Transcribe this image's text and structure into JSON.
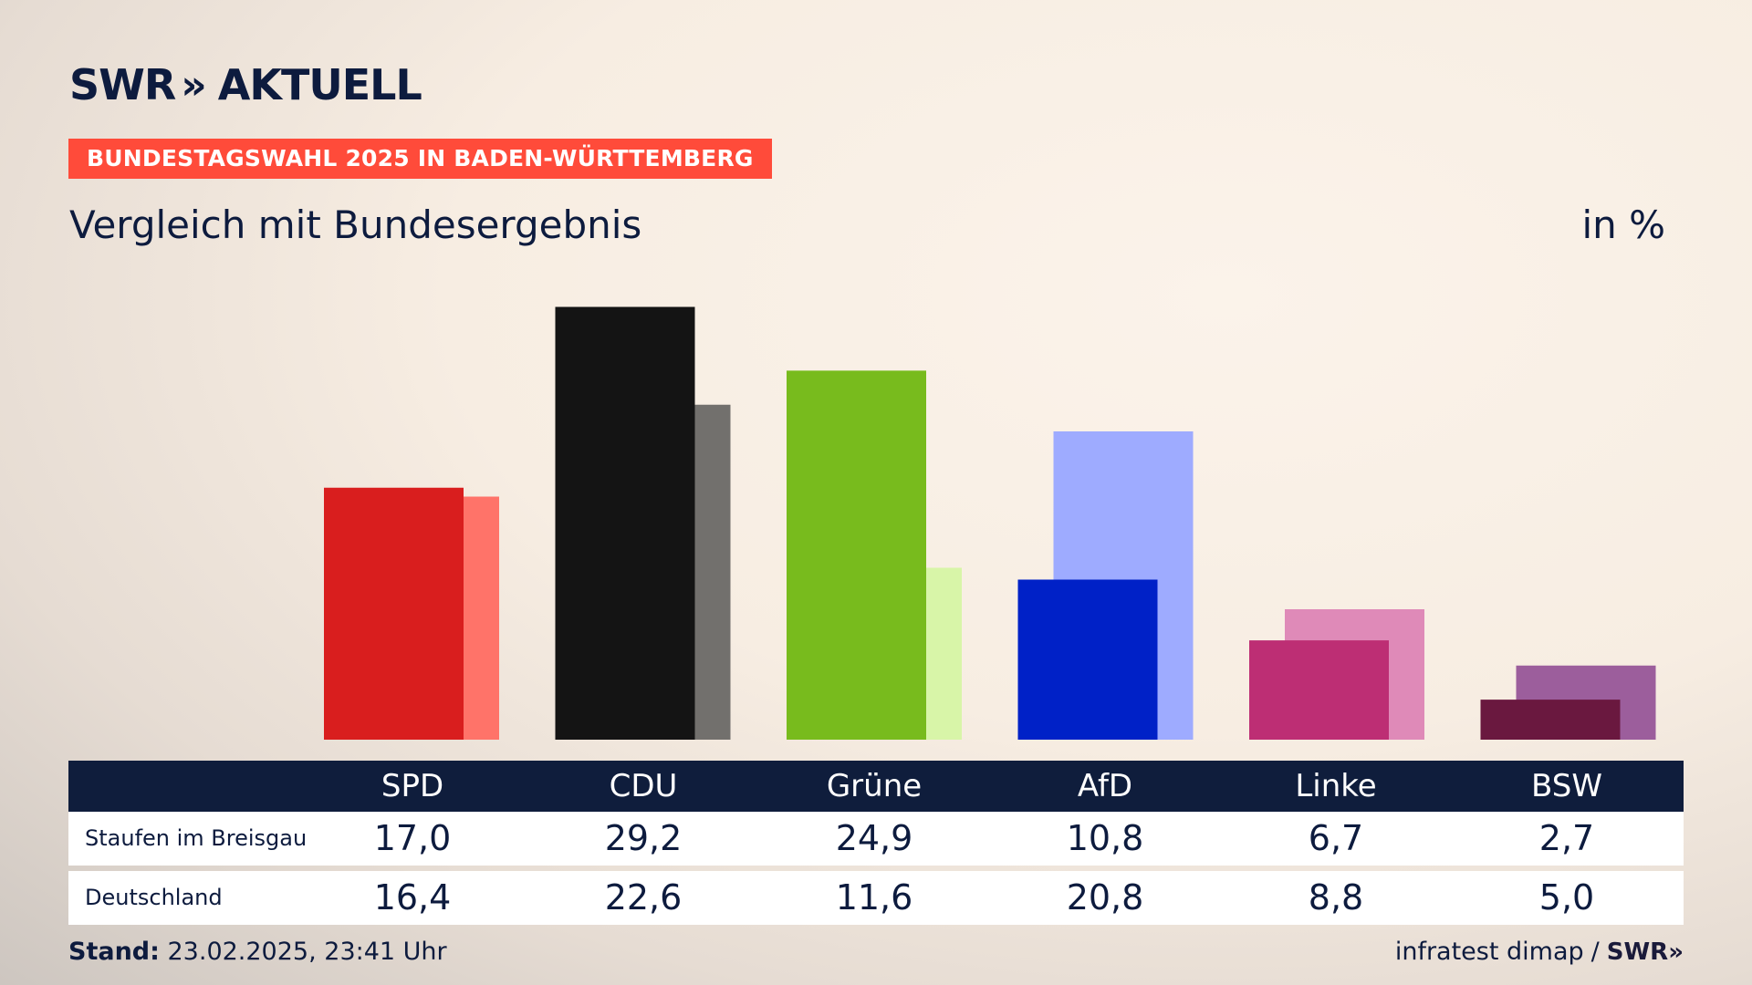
{
  "brand": {
    "name": "SWR",
    "chevrons": "»",
    "suffix": "AKTUELL"
  },
  "kicker": "BUNDESTAGSWAHL 2025 IN BADEN-WÜRTTEMBERG",
  "title": "Vergleich mit Bundesergebnis",
  "unit": "in %",
  "chart_data": {
    "type": "bar",
    "categories": [
      "SPD",
      "CDU",
      "Grüne",
      "AfD",
      "Linke",
      "BSW"
    ],
    "series": [
      {
        "name": "Staufen im Breisgau",
        "values": [
          17.0,
          29.2,
          24.9,
          10.8,
          6.7,
          2.7
        ],
        "colors": [
          "#d91e1e",
          "#141414",
          "#78bb1d",
          "#0021c7",
          "#bd2e74",
          "#6a183f"
        ]
      },
      {
        "name": "Deutschland",
        "values": [
          16.4,
          22.6,
          11.6,
          20.8,
          8.8,
          5.0
        ],
        "colors": [
          "#ff7369",
          "#72706d",
          "#d8f5a8",
          "#9eabff",
          "#df8ab8",
          "#9c5e9c"
        ]
      }
    ],
    "ylim": [
      0,
      30
    ],
    "xlabel": "",
    "ylabel": "",
    "legend": "none"
  },
  "table": {
    "header": [
      "SPD",
      "CDU",
      "Grüne",
      "AfD",
      "Linke",
      "BSW"
    ],
    "rows": [
      {
        "label": "Staufen im Breisgau",
        "values": [
          "17,0",
          "29,2",
          "24,9",
          "10,8",
          "6,7",
          "2,7"
        ]
      },
      {
        "label": "Deutschland",
        "values": [
          "16,4",
          "22,6",
          "11,6",
          "20,8",
          "8,8",
          "5,0"
        ]
      }
    ]
  },
  "footer": {
    "stand_label": "Stand:",
    "stand_value": " 23.02.2025, 23:41 Uhr",
    "source": "infratest dimap",
    "separator": "/",
    "source_brand": "SWR»"
  }
}
